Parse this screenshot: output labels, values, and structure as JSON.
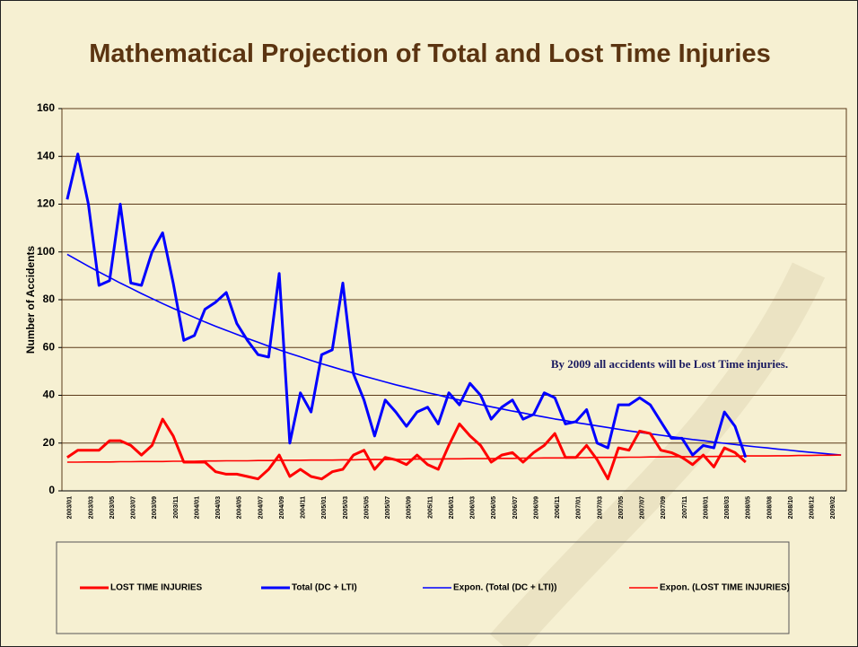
{
  "chart_data": {
    "type": "line",
    "title": "Mathematical Projection of Total and Lost Time Injuries",
    "y_label": "Number of Accidents",
    "annotation": "By  2009 all accidents will be Lost Time injuries.",
    "categories": [
      "2003/01",
      null,
      "2003/03",
      null,
      "2003/05",
      null,
      "2003/07",
      null,
      "2003/09",
      null,
      "2003/11",
      null,
      "2004/01",
      null,
      "2004/03",
      null,
      "2004/05",
      null,
      "2004/07",
      null,
      "2004/09",
      null,
      "2004/11",
      null,
      "2005/01",
      null,
      "2005/03",
      null,
      "2005/05",
      null,
      "2005/07",
      null,
      "2005/09",
      null,
      "2005/11",
      null,
      "2006/01",
      null,
      "2006/03",
      null,
      "2006/05",
      null,
      "2006/07",
      null,
      "2006/09",
      null,
      "2006/11",
      null,
      "2007/01",
      null,
      "2007/03",
      null,
      "2007/05",
      null,
      "2007/07",
      null,
      "2007/09",
      null,
      "2007/11",
      null,
      "2008/01",
      null,
      "2008/03",
      null,
      "2008/05",
      null,
      "2008/08",
      null,
      "2008/10",
      null,
      "2008/12",
      null,
      "2009/02",
      null
    ],
    "series": [
      {
        "name": "LOST TIME INJURIES",
        "color": "#ff0000",
        "trendline": false,
        "values": [
          14,
          17,
          17,
          17,
          21,
          21,
          19,
          15,
          19,
          30,
          23,
          12,
          12,
          12,
          8,
          7,
          7,
          6,
          5,
          9,
          15,
          6,
          9,
          6,
          5,
          8,
          9,
          15,
          17,
          9,
          14,
          13,
          11,
          15,
          11,
          9,
          19,
          28,
          23,
          19,
          12,
          15,
          16,
          12,
          16,
          19,
          24,
          14,
          14,
          19,
          13,
          5,
          18,
          17,
          25,
          24,
          17,
          16,
          14,
          11,
          15,
          10,
          18,
          16,
          12,
          null,
          null,
          null,
          null,
          null,
          null,
          null,
          null,
          null
        ]
      },
      {
        "name": "Total (DC + LTI)",
        "color": "#0000ff",
        "trendline": false,
        "values": [
          122,
          141,
          120,
          86,
          88,
          120,
          87,
          86,
          100,
          108,
          87,
          63,
          65,
          76,
          79,
          83,
          70,
          63,
          57,
          56,
          91,
          20,
          41,
          33,
          57,
          59,
          87,
          49,
          38,
          23,
          38,
          33,
          27,
          33,
          35,
          28,
          41,
          36,
          45,
          40,
          30,
          35,
          38,
          30,
          32,
          41,
          39,
          28,
          29,
          34,
          20,
          18,
          36,
          36,
          39,
          36,
          29,
          22,
          22,
          15,
          19,
          18,
          33,
          27,
          14,
          null,
          null,
          null,
          null,
          null,
          null,
          null,
          null,
          null
        ]
      },
      {
        "name": "Expon. (Total (DC + LTI))",
        "color": "#0000ff",
        "trendline": true,
        "values": [
          99.0,
          96.5,
          94.0,
          91.6,
          89.3,
          87.0,
          84.8,
          82.6,
          80.5,
          78.4,
          76.4,
          74.5,
          72.6,
          70.7,
          68.9,
          67.2,
          65.5,
          63.8,
          62.2,
          60.6,
          59.0,
          57.5,
          56.1,
          54.6,
          53.2,
          51.9,
          50.6,
          49.3,
          48.0,
          46.8,
          45.6,
          44.4,
          43.3,
          42.2,
          41.1,
          40.1,
          39.0,
          38.0,
          37.1,
          36.1,
          35.2,
          34.3,
          33.4,
          32.6,
          31.7,
          30.9,
          30.1,
          29.4,
          28.6,
          27.9,
          27.2,
          26.5,
          25.8,
          25.1,
          24.5,
          23.9,
          23.3,
          22.7,
          22.1,
          21.5,
          21.0,
          20.4,
          19.9,
          19.4,
          18.9,
          18.4,
          18.0,
          17.5,
          17.1,
          16.6,
          16.2,
          15.8,
          15.4,
          15.0
        ]
      },
      {
        "name": "Expon. (LOST TIME INJURIES)",
        "color": "#ff0000",
        "trendline": true,
        "values": [
          12.0,
          12.0,
          12.1,
          12.1,
          12.1,
          12.2,
          12.2,
          12.3,
          12.3,
          12.3,
          12.4,
          12.4,
          12.4,
          12.5,
          12.5,
          12.6,
          12.6,
          12.6,
          12.7,
          12.7,
          12.8,
          12.8,
          12.8,
          12.9,
          12.9,
          12.9,
          13.0,
          13.0,
          13.1,
          13.1,
          13.1,
          13.2,
          13.2,
          13.3,
          13.3,
          13.3,
          13.4,
          13.4,
          13.5,
          13.5,
          13.5,
          13.6,
          13.6,
          13.7,
          13.7,
          13.8,
          13.8,
          13.8,
          13.9,
          13.9,
          14.0,
          14.0,
          14.0,
          14.1,
          14.1,
          14.2,
          14.2,
          14.3,
          14.3,
          14.3,
          14.4,
          14.4,
          14.5,
          14.5,
          14.6,
          14.6,
          14.6,
          14.7,
          14.7,
          14.8,
          14.8,
          14.9,
          14.9,
          15.0
        ]
      }
    ],
    "ylim": [
      0,
      160
    ],
    "yticks": [
      0,
      20,
      40,
      60,
      80,
      100,
      120,
      140,
      160
    ],
    "grid": true,
    "legend": "bottom"
  }
}
